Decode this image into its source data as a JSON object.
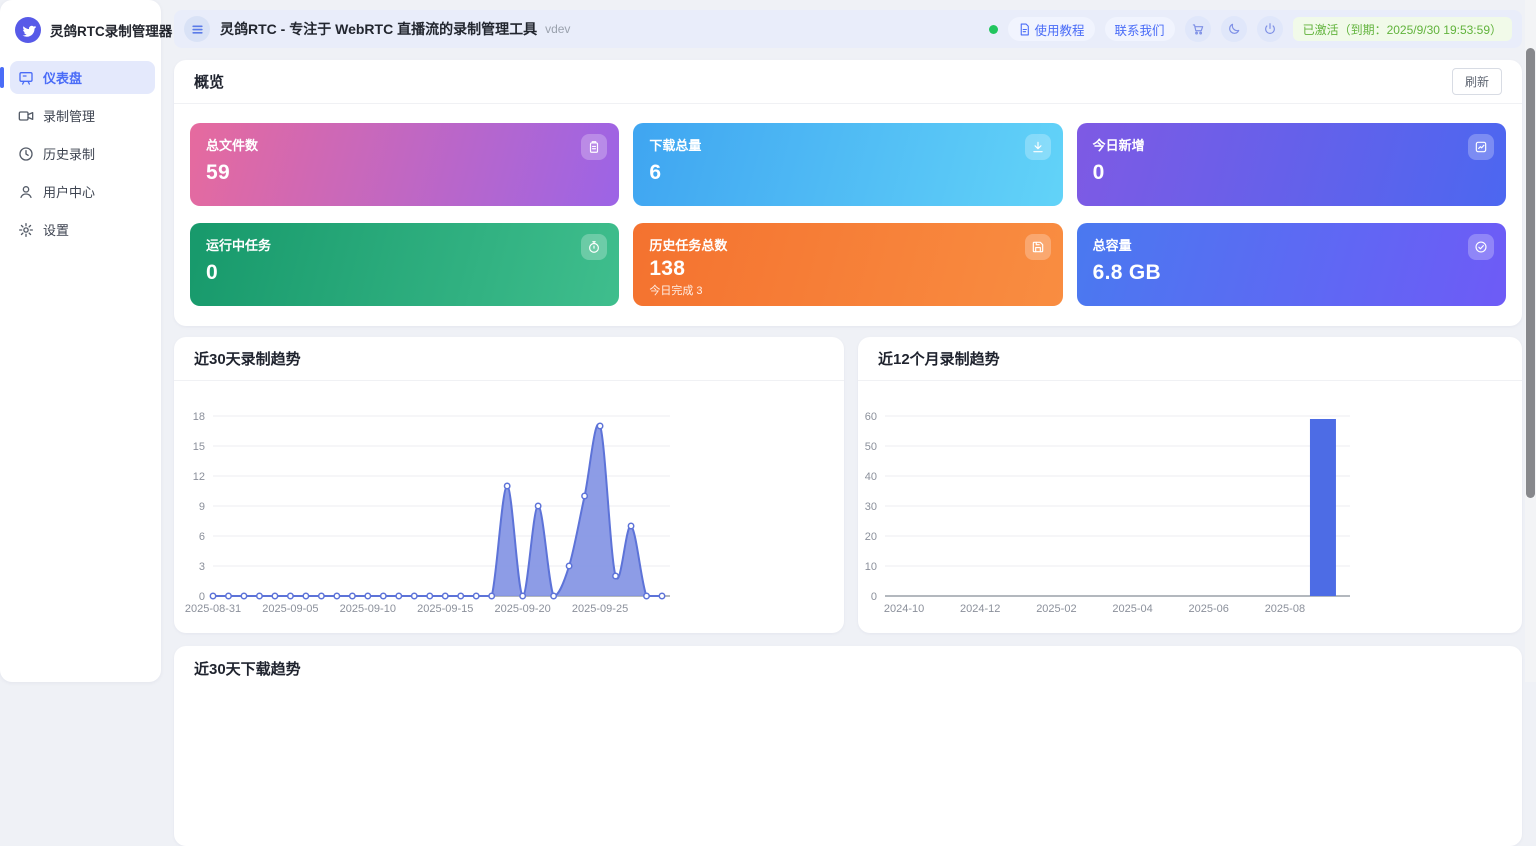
{
  "colors": {
    "accent": "#4a6cf7",
    "status_green": "#22c55e",
    "activation_text": "#61b33c",
    "line_stroke": "#5d73d8",
    "line_fill": "#8394e4",
    "bar_fill": "#4d6ce5"
  },
  "sidebar": {
    "title": "灵鸽RTC录制管理器",
    "items": [
      {
        "label": "仪表盘",
        "icon": "dashboard-icon",
        "active": true
      },
      {
        "label": "录制管理",
        "icon": "video-icon",
        "active": false
      },
      {
        "label": "历史录制",
        "icon": "clock-icon",
        "active": false
      },
      {
        "label": "用户中心",
        "icon": "user-icon",
        "active": false
      },
      {
        "label": "设置",
        "icon": "gear-icon",
        "active": false
      }
    ]
  },
  "header": {
    "title": "灵鸽RTC - 专注于 WebRTC 直播流的录制管理工具",
    "version": "vdev",
    "links": [
      {
        "label": "使用教程",
        "icon": "document-icon"
      },
      {
        "label": "联系我们"
      }
    ],
    "icon_buttons": [
      "cart-icon",
      "moon-icon",
      "power-icon"
    ],
    "activation": "已激活（到期：2025/9/30 19:53:59）"
  },
  "overview": {
    "title": "概览",
    "refresh_label": "刷新",
    "cards": [
      {
        "title": "总文件数",
        "value": "59",
        "icon": "clipboard-icon",
        "gradient": [
          "#e66a9e",
          "#9c64e6"
        ]
      },
      {
        "title": "下载总量",
        "value": "6",
        "icon": "download-icon",
        "gradient": [
          "#3fa5f1",
          "#62d3f8"
        ]
      },
      {
        "title": "今日新增",
        "value": "0",
        "icon": "trend-icon",
        "gradient": [
          "#7e5ae4",
          "#4c67f0"
        ]
      },
      {
        "title": "运行中任务",
        "value": "0",
        "icon": "timer-icon",
        "gradient": [
          "#17996b",
          "#3fbe8d"
        ]
      },
      {
        "title": "历史任务总数",
        "value": "138",
        "subtitle": "今日完成 3",
        "icon": "save-icon",
        "gradient": [
          "#f4722f",
          "#f98d41"
        ]
      },
      {
        "title": "总容量",
        "value": "6.8 GB",
        "icon": "check-circle-icon",
        "gradient": [
          "#4a79f0",
          "#6e5bf6"
        ]
      }
    ]
  },
  "chart_data": [
    {
      "type": "area",
      "title": "近30天录制趋势",
      "x": [
        "2025-08-31",
        "2025-09-01",
        "2025-09-02",
        "2025-09-03",
        "2025-09-04",
        "2025-09-05",
        "2025-09-06",
        "2025-09-07",
        "2025-09-08",
        "2025-09-09",
        "2025-09-10",
        "2025-09-11",
        "2025-09-12",
        "2025-09-13",
        "2025-09-14",
        "2025-09-15",
        "2025-09-16",
        "2025-09-17",
        "2025-09-18",
        "2025-09-19",
        "2025-09-20",
        "2025-09-21",
        "2025-09-22",
        "2025-09-23",
        "2025-09-24",
        "2025-09-25",
        "2025-09-26",
        "2025-09-27",
        "2025-09-28",
        "2025-09-29"
      ],
      "values": [
        0,
        0,
        0,
        0,
        0,
        0,
        0,
        0,
        0,
        0,
        0,
        0,
        0,
        0,
        0,
        0,
        0,
        0,
        0,
        11,
        0,
        9,
        0,
        3,
        10,
        17,
        2,
        7,
        0,
        0
      ],
      "ylim": [
        0,
        18
      ],
      "yticks": [
        0,
        3,
        6,
        9,
        12,
        15,
        18
      ],
      "xticks": [
        "2025-08-31",
        "2025-09-05",
        "2025-09-10",
        "2025-09-15",
        "2025-09-20",
        "2025-09-25"
      ],
      "tick_indices": [
        0,
        5,
        10,
        15,
        20,
        25
      ],
      "grid": true,
      "legend": "none"
    },
    {
      "type": "bar",
      "title": "近12个月录制趋势",
      "categories": [
        "2024-10",
        "2024-11",
        "2024-12",
        "2025-01",
        "2025-02",
        "2025-03",
        "2025-04",
        "2025-05",
        "2025-06",
        "2025-07",
        "2025-08",
        "2025-09"
      ],
      "values": [
        0,
        0,
        0,
        0,
        0,
        0,
        0,
        0,
        0,
        0,
        0,
        59
      ],
      "ylim": [
        0,
        60
      ],
      "yticks": [
        0,
        10,
        20,
        30,
        40,
        50,
        60
      ],
      "xticks": [
        "2024-10",
        "2024-12",
        "2025-02",
        "2025-04",
        "2025-06",
        "2025-08"
      ],
      "tick_indices": [
        0,
        2,
        4,
        6,
        8,
        10
      ],
      "grid": true,
      "legend": "none"
    },
    {
      "type": "area",
      "title": "近30天下载趋势"
    }
  ]
}
